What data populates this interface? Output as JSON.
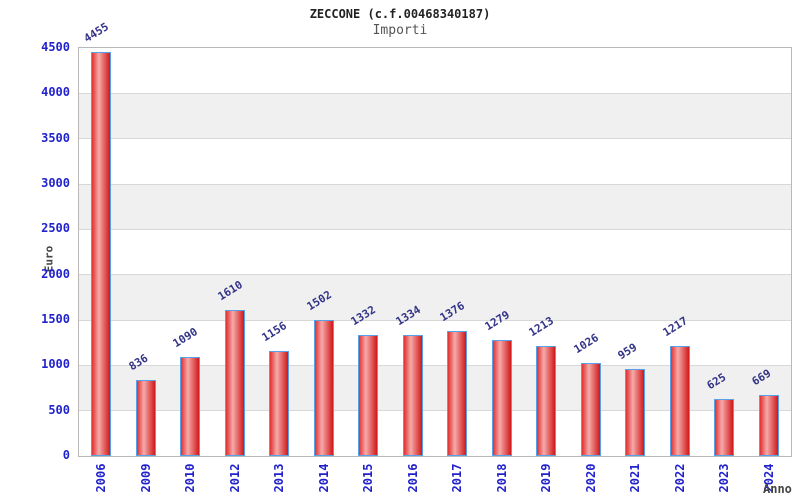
{
  "chart_data": {
    "type": "bar",
    "title": "ZECCONE (c.f.00468340187)",
    "subtitle": "Importi",
    "xlabel": "Anno",
    "ylabel": "Euro",
    "categories": [
      "2006",
      "2009",
      "2010",
      "2012",
      "2013",
      "2014",
      "2015",
      "2016",
      "2017",
      "2018",
      "2019",
      "2020",
      "2021",
      "2022",
      "2023",
      "2024"
    ],
    "values": [
      4455,
      836,
      1090,
      1610,
      1156,
      1502,
      1332,
      1334,
      1376,
      1279,
      1213,
      1026,
      959,
      1217,
      625,
      669
    ],
    "ylim": [
      0,
      4500
    ],
    "yticks": [
      0,
      500,
      1000,
      1500,
      2000,
      2500,
      3000,
      3500,
      4000,
      4500
    ],
    "grid": true,
    "legend": "none",
    "colors": {
      "bar_fill_left": "#e03030",
      "bar_fill_mid": "#f6aaaa",
      "bar_fill_right": "#d01818",
      "bar_border": "#58a0e8",
      "axis_tick_label": "#2222cc",
      "value_label": "#333388",
      "band": "#f0f0f0",
      "gridline": "#d8d8d8",
      "title_color": "#222222",
      "subtitle_color": "#555555",
      "axis_title_color": "#444444"
    }
  }
}
